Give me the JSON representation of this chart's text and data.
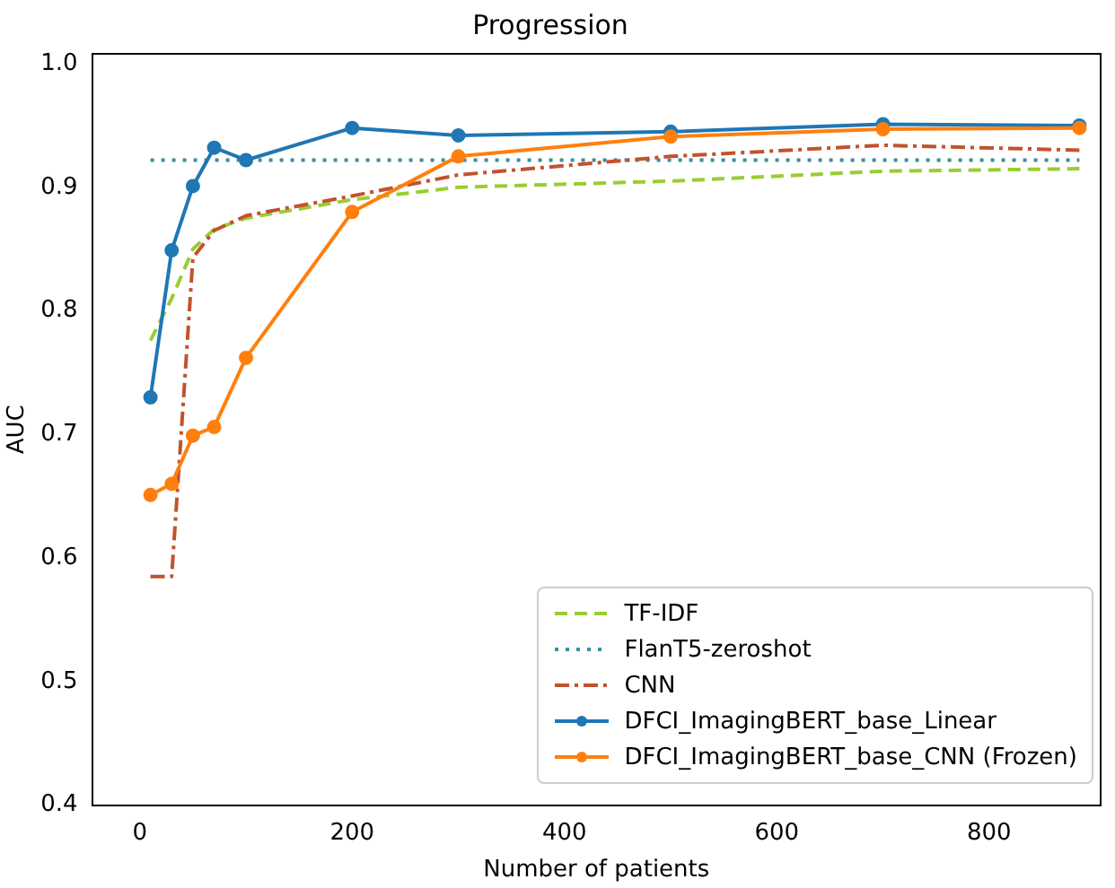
{
  "chart_data": {
    "type": "line",
    "title": "Progression",
    "xlabel": "Number of patients",
    "ylabel": "AUC",
    "xlim": [
      -45,
      905
    ],
    "xticks": [
      0,
      200,
      400,
      600,
      800
    ],
    "ylim": [
      0.4,
      1.008
    ],
    "yticks": [
      0.4,
      0.5,
      0.6,
      0.7,
      0.8,
      0.9,
      {
        "value": 1,
        "label": "1.0"
      }
    ],
    "grid": false,
    "legend": "bottom right",
    "series": [
      {
        "name": "TF-IDF",
        "color": "#9acd32",
        "line_style": "dashed",
        "marker": "none",
        "x": [
          10,
          30,
          50,
          70,
          100,
          200,
          300,
          500,
          700,
          885
        ],
        "values": [
          0.776,
          0.81,
          0.85,
          0.866,
          0.875,
          0.89,
          0.9,
          0.905,
          0.913,
          0.915
        ]
      },
      {
        "name": "FlanT5-zeroshot",
        "color": "#3a8f9a",
        "line_style": "dotted",
        "marker": "none",
        "x": [
          10,
          885
        ],
        "values": [
          0.922,
          0.922
        ]
      },
      {
        "name": "CNN",
        "color": "#c2522d",
        "line_style": "dashdot",
        "marker": "none",
        "x": [
          10,
          30,
          50,
          70,
          100,
          200,
          300,
          500,
          700,
          885
        ],
        "values": [
          0.585,
          0.585,
          0.843,
          0.865,
          0.877,
          0.893,
          0.91,
          0.925,
          0.934,
          0.93
        ]
      },
      {
        "name": "DFCI_ImagingBERT_base_Linear",
        "color": "#1f77b4",
        "line_style": "solid",
        "marker": "circle",
        "x": [
          10,
          30,
          50,
          70,
          100,
          200,
          300,
          500,
          700,
          885
        ],
        "values": [
          0.73,
          0.849,
          0.901,
          0.932,
          0.922,
          0.948,
          0.942,
          0.945,
          0.951,
          0.95
        ]
      },
      {
        "name": "DFCI_ImagingBERT_base_CNN (Frozen)",
        "color": "#ff7f0e",
        "line_style": "solid",
        "marker": "circle",
        "x": [
          10,
          30,
          50,
          70,
          100,
          200,
          300,
          500,
          700,
          885
        ],
        "values": [
          0.651,
          0.66,
          0.699,
          0.706,
          0.762,
          0.88,
          0.925,
          0.941,
          0.947,
          0.948
        ]
      }
    ]
  }
}
